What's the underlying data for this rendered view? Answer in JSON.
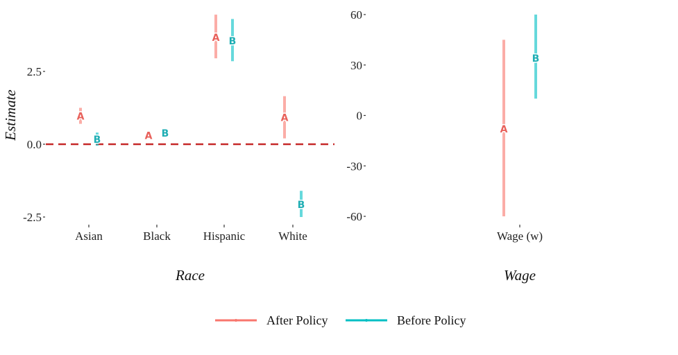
{
  "colors": {
    "after": "#F8766D",
    "before": "#00BFC4",
    "after_text": "#E8605A",
    "before_text": "#1FAEB4",
    "zero_line": "#C62828"
  },
  "legend": [
    {
      "key": "after",
      "label": "After Policy",
      "marker": "A"
    },
    {
      "key": "before",
      "label": "Before Policy",
      "marker": "B"
    }
  ],
  "chart_data": [
    {
      "type": "scatter",
      "title": "",
      "xlabel": "Race",
      "ylabel": "Estimate",
      "categories": [
        "Asian",
        "Black",
        "Hispanic",
        "White"
      ],
      "ylim": [
        -2.5,
        4.5
      ],
      "yticks": [
        -2.5,
        0.0,
        2.5
      ],
      "ytick_labels": [
        "-2.5",
        "0.0",
        "2.5"
      ],
      "reference_line": 0,
      "series": [
        {
          "key": "after",
          "name": "After Policy",
          "marker": "A",
          "values": [
            0.97,
            0.3,
            3.67,
            0.92
          ],
          "lower": [
            0.7,
            0.2,
            2.95,
            0.2
          ],
          "upper": [
            1.25,
            0.45,
            4.45,
            1.65
          ]
        },
        {
          "key": "before",
          "name": "Before Policy",
          "marker": "B",
          "values": [
            0.17,
            0.38,
            3.55,
            -2.07
          ],
          "lower": [
            -0.05,
            0.35,
            2.85,
            -2.5
          ],
          "upper": [
            0.4,
            0.42,
            4.3,
            -1.6
          ]
        }
      ]
    },
    {
      "type": "scatter",
      "title": "",
      "xlabel": "Wage",
      "ylabel": "",
      "categories": [
        "Wage (w)"
      ],
      "ylim": [
        -60,
        60
      ],
      "yticks": [
        -60,
        -30,
        0,
        30,
        60
      ],
      "ytick_labels": [
        "-60",
        "-30",
        "0",
        "30",
        "60"
      ],
      "series": [
        {
          "key": "after",
          "name": "After Policy",
          "marker": "A",
          "values": [
            -8
          ],
          "lower": [
            -60
          ],
          "upper": [
            45
          ]
        },
        {
          "key": "before",
          "name": "Before Policy",
          "marker": "B",
          "values": [
            34
          ],
          "lower": [
            10
          ],
          "upper": [
            60
          ]
        }
      ]
    }
  ]
}
